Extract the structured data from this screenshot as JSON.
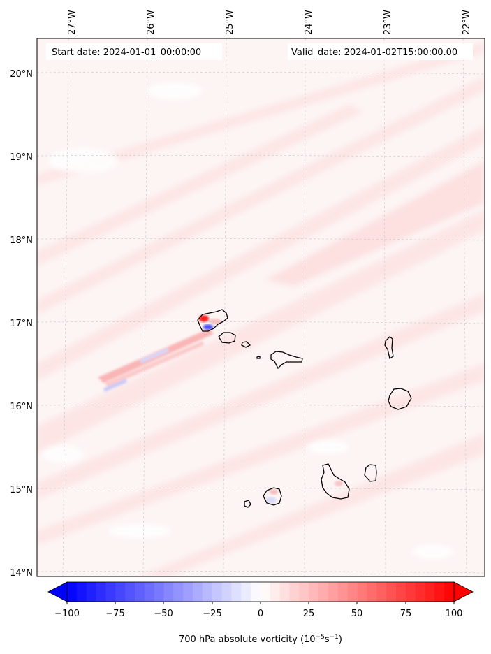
{
  "header": {
    "start_date": "Start date: 2024-01-01_00:00:00",
    "valid_date": "Valid_date: 2024-01-02T15:00:00.00"
  },
  "longitude_labels": [
    "27°W",
    "26°W",
    "25°W",
    "24°W",
    "23°W",
    "22°W"
  ],
  "latitude_labels": [
    "20°N",
    "19°N",
    "18°N",
    "17°N",
    "16°N",
    "15°N",
    "14°N"
  ],
  "colorbar": {
    "ticks": [
      "−100",
      "−75",
      "−50",
      "−25",
      "0",
      "25",
      "50",
      "75",
      "100"
    ],
    "label_main": "700 hPa absolute vorticity (10",
    "label_exp1": "−5",
    "label_mid": "s",
    "label_exp2": "−1",
    "label_end": ")",
    "min": -100,
    "max": 100,
    "low_color": "#0000ff",
    "mid_color": "#ffffff",
    "high_color": "#ff0000"
  },
  "colors": {
    "background_field": "#fdf4f4",
    "band": "#fde3e3",
    "coast": "#000000",
    "grid": "#cccccc"
  }
}
